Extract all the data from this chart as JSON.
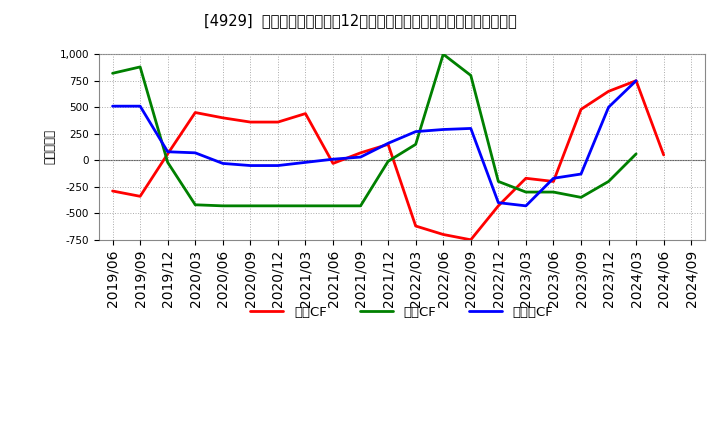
{
  "title": "[4929]  キャッシュフローの12か月移動合計の対前年同期増減額の推移",
  "ylabel": "（百万円）",
  "background_color": "#ffffff",
  "plot_background_color": "#ffffff",
  "grid_color": "#aaaaaa",
  "dates": [
    "2019/06",
    "2019/09",
    "2019/12",
    "2020/03",
    "2020/06",
    "2020/09",
    "2020/12",
    "2021/03",
    "2021/06",
    "2021/09",
    "2021/12",
    "2022/03",
    "2022/06",
    "2022/09",
    "2022/12",
    "2023/03",
    "2023/06",
    "2023/09",
    "2023/12",
    "2024/03",
    "2024/06",
    "2024/09"
  ],
  "operating_cf": [
    -290,
    -340,
    60,
    450,
    400,
    360,
    360,
    440,
    -30,
    70,
    150,
    -620,
    -700,
    -750,
    -430,
    -170,
    -200,
    480,
    650,
    750,
    50,
    null
  ],
  "investing_cf": [
    820,
    880,
    -20,
    -420,
    -430,
    -430,
    -430,
    -430,
    -430,
    -430,
    -10,
    150,
    1000,
    800,
    -200,
    -300,
    -300,
    -350,
    -200,
    60,
    null,
    null
  ],
  "free_cf": [
    510,
    510,
    80,
    70,
    -30,
    -50,
    -50,
    -20,
    10,
    30,
    160,
    270,
    290,
    300,
    -400,
    -430,
    -170,
    -130,
    500,
    750,
    null,
    null
  ],
  "operating_color": "#ff0000",
  "investing_color": "#008000",
  "free_color": "#0000ff",
  "ylim": [
    -750,
    1000
  ],
  "yticks": [
    -750,
    -500,
    -250,
    0,
    250,
    500,
    750,
    1000
  ],
  "legend_labels": [
    "営業CF",
    "投資CF",
    "フリーCF"
  ],
  "line_width": 2.0,
  "tick_fontsize": 7.5,
  "title_fontsize": 10.5,
  "ylabel_fontsize": 8.5
}
